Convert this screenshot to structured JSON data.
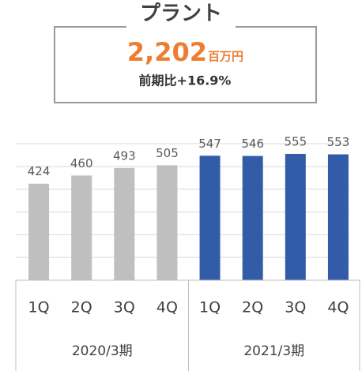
{
  "header": {
    "title": "プラント",
    "value": "2,202",
    "unit": "百万円",
    "change": "前期比+16.9%"
  },
  "chart_data": {
    "type": "bar",
    "categories": [
      "1Q",
      "2Q",
      "3Q",
      "4Q",
      "1Q",
      "2Q",
      "3Q",
      "4Q"
    ],
    "values": [
      424,
      460,
      493,
      505,
      547,
      546,
      555,
      553
    ],
    "groups": [
      {
        "label": "2020/3期",
        "span": 4,
        "color": "#bfbfbf"
      },
      {
        "label": "2021/3期",
        "span": 4,
        "color": "#335ca8"
      }
    ],
    "ylim": [
      0,
      600
    ],
    "yticks": [
      0,
      100,
      200,
      300,
      400,
      500,
      600
    ],
    "grid": true
  }
}
